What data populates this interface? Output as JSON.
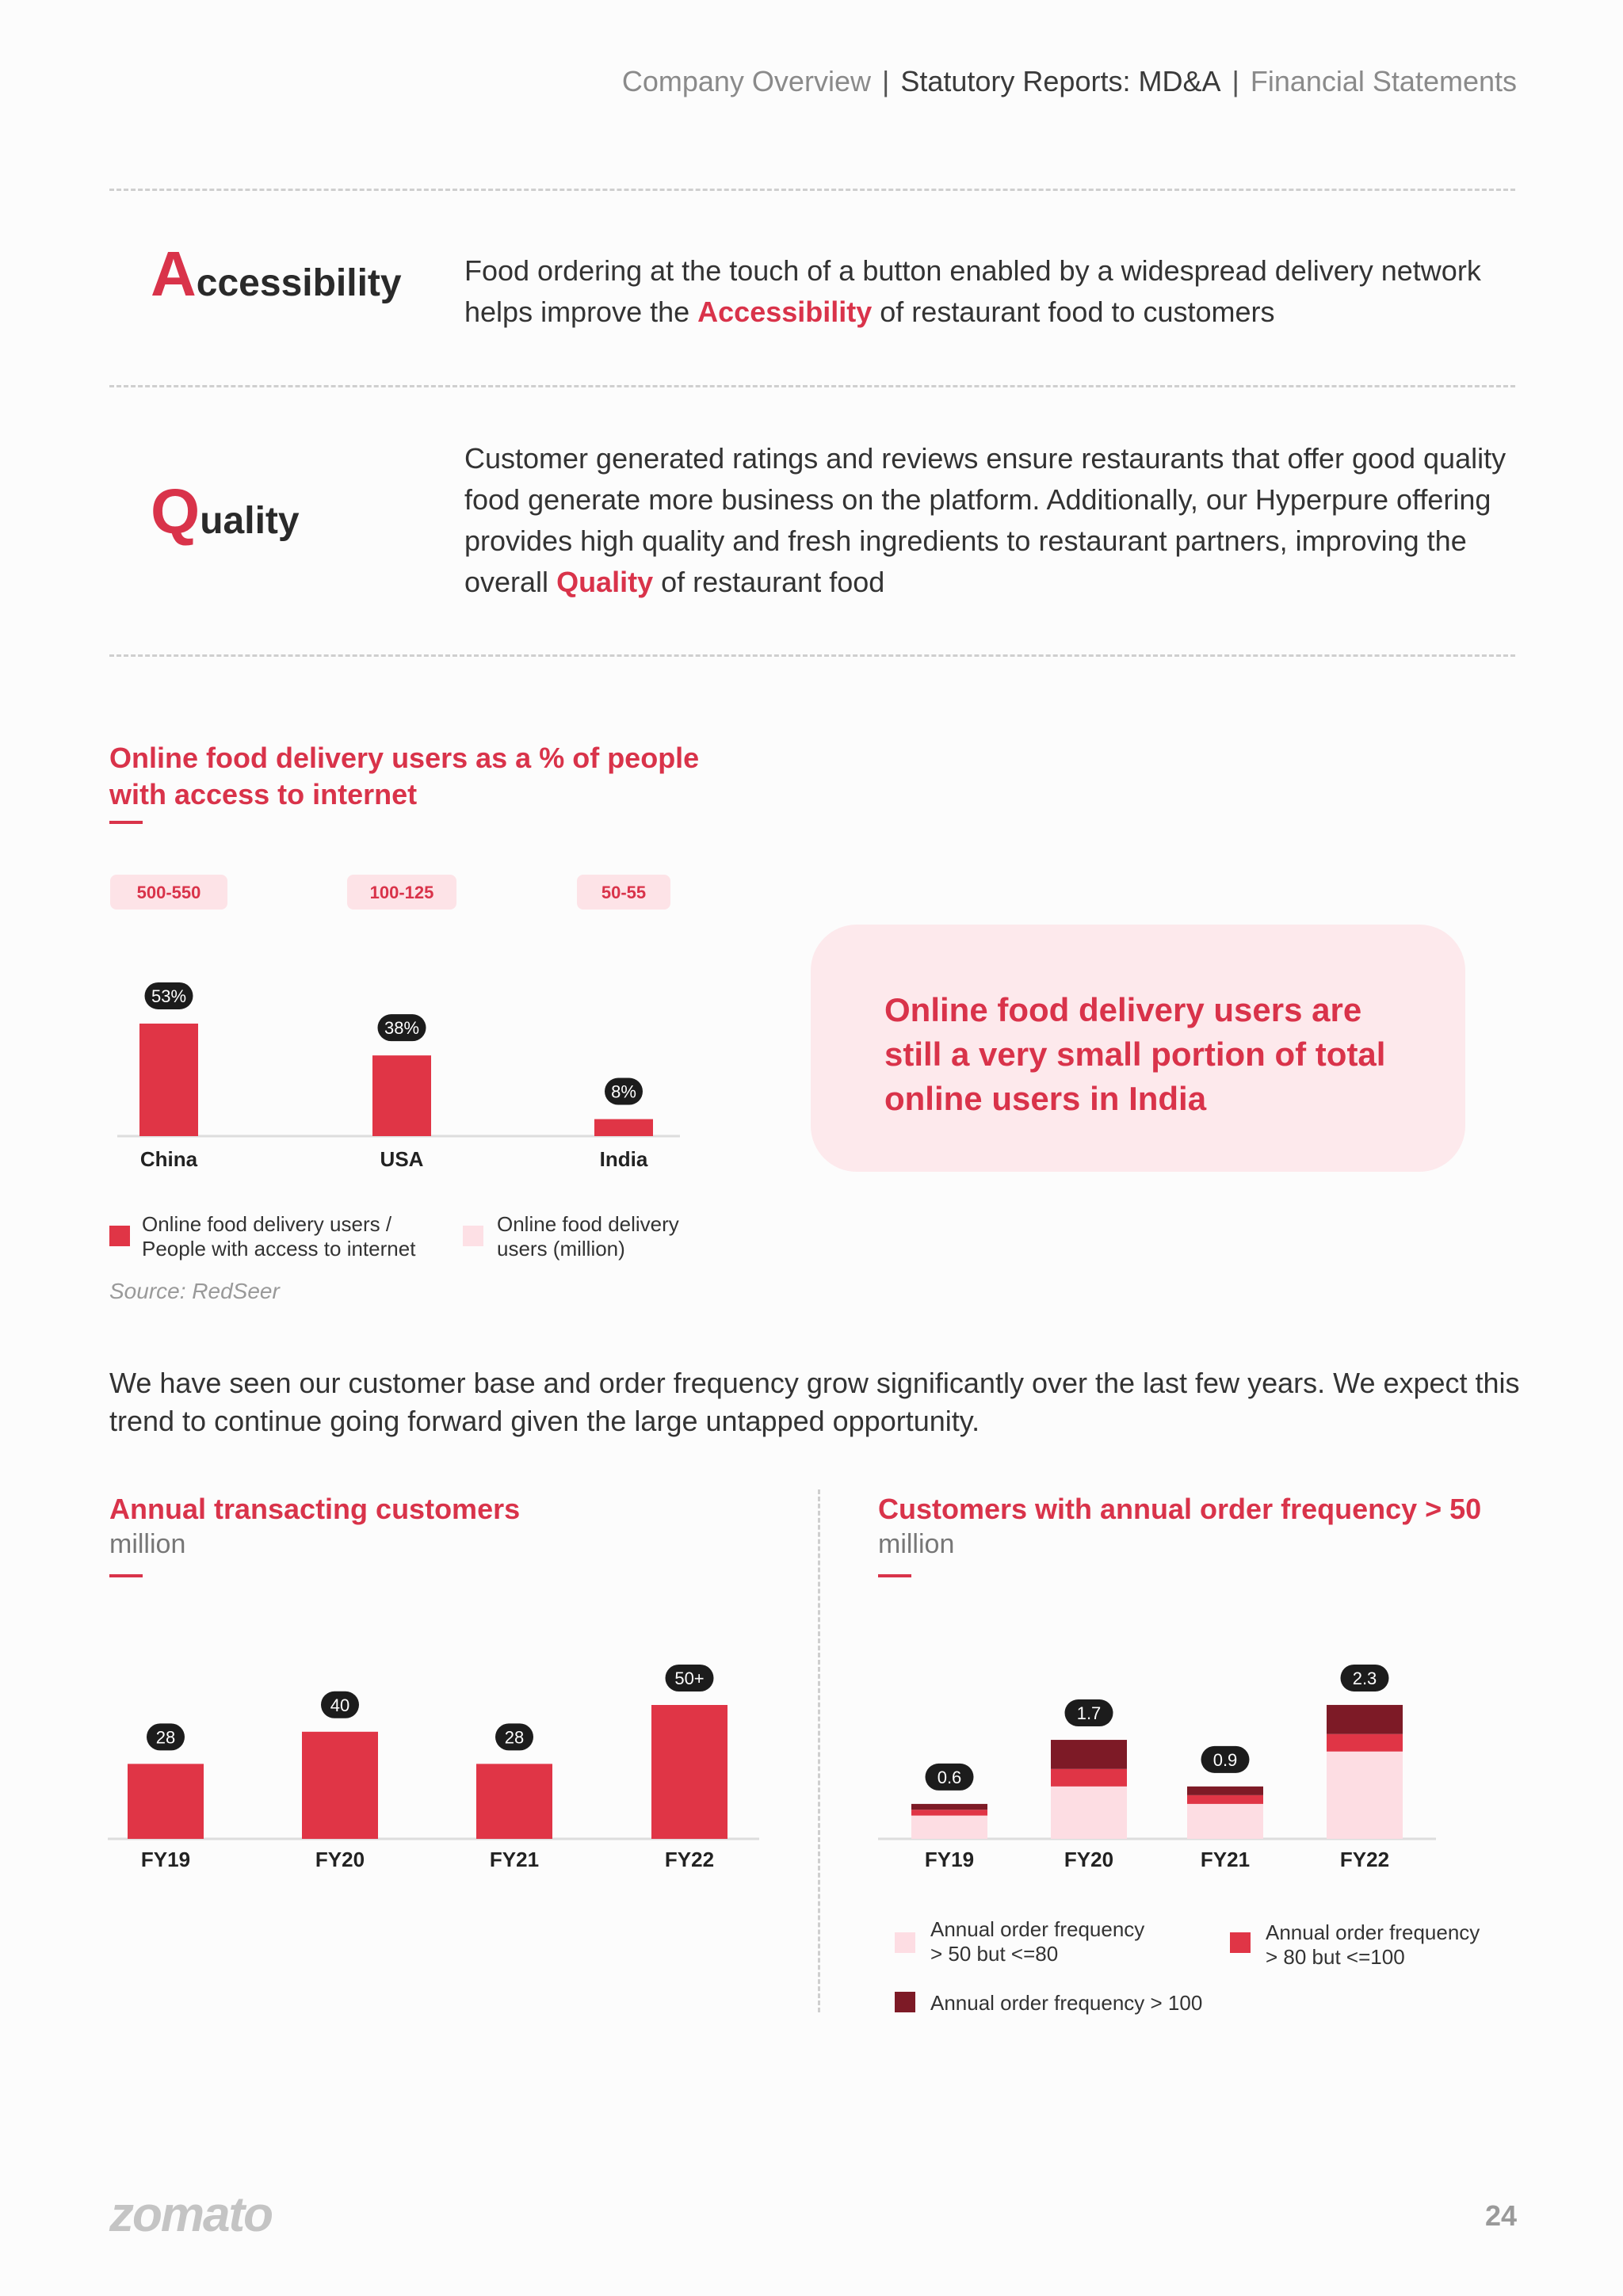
{
  "header": {
    "nav": [
      "Company Overview",
      "Statutory Reports: MD&A",
      "Financial Statements"
    ],
    "separator": "|"
  },
  "features": [
    {
      "title_initial": "A",
      "title_rest": "ccessibility",
      "text_before": "Food ordering at the touch of a button enabled by a widespread delivery network helps improve the ",
      "highlight": "Accessibility",
      "text_after": " of restaurant food to customers"
    },
    {
      "title_initial": "Q",
      "title_rest": "uality",
      "text_before": "Customer generated ratings and reviews ensure restaurants that offer good quality food generate more business on the platform. Additionally, our Hyperpure offering provides high quality and fresh ingredients to restaurant partners, improving the overall ",
      "highlight": "Quality",
      "text_after": " of restaurant food"
    }
  ],
  "chart1": {
    "title_line1": "Online food delivery users as a % of people",
    "title_line2": "with access to internet",
    "legend": [
      {
        "label_line1": "Online food delivery users /",
        "label_line2": "People with access to internet",
        "color": "#e03546"
      },
      {
        "label_line1": "Online food delivery",
        "label_line2": "users (million)",
        "color": "#fde0e5"
      }
    ],
    "source": "Source: RedSeer"
  },
  "callout": {
    "text_line1": "Online food delivery users are",
    "text_line2": "still a very small portion of total",
    "text_line3": "online users in India"
  },
  "paragraph": "We have seen our customer base and order frequency grow significantly over the last few years. We expect this trend to continue going forward given the large untapped opportunity.",
  "chart2": {
    "title": "Annual transacting customers",
    "subtitle": "million"
  },
  "chart3": {
    "title": "Customers with annual order frequency > 50",
    "subtitle": "million",
    "legend": [
      {
        "label_line1": "Annual order frequency",
        "label_line2": "> 50 but <=80",
        "color": "#fddde3"
      },
      {
        "label_line1": "Annual order frequency",
        "label_line2": "> 80 but <=100",
        "color": "#e03546"
      },
      {
        "label_line1": "Annual order frequency > 100",
        "label_line2": "",
        "color": "#7d1a26"
      }
    ]
  },
  "chart_data": [
    {
      "type": "bar",
      "title": "Online food delivery users as a % of people with access to internet",
      "categories": [
        "China",
        "USA",
        "India"
      ],
      "series": [
        {
          "name": "Online food delivery users / People with access to internet",
          "values": [
            53,
            38,
            8
          ],
          "labels": [
            "53%",
            "38%",
            "8%"
          ]
        }
      ],
      "category_annotations": [
        "500-550",
        "100-125",
        "50-55"
      ],
      "ylim": [
        0,
        60
      ]
    },
    {
      "type": "bar",
      "title": "Annual transacting customers",
      "ylabel": "million",
      "categories": [
        "FY19",
        "FY20",
        "FY21",
        "FY22"
      ],
      "values": [
        28,
        40,
        28,
        50
      ],
      "labels": [
        "28",
        "40",
        "28",
        "50+"
      ],
      "ylim": [
        0,
        60
      ]
    },
    {
      "type": "bar",
      "stacked": true,
      "title": "Customers with annual order frequency > 50",
      "ylabel": "million",
      "categories": [
        "FY19",
        "FY20",
        "FY21",
        "FY22"
      ],
      "totals": [
        "0.6",
        "1.7",
        "0.9",
        "2.3"
      ],
      "series": [
        {
          "name": "Annual order frequency > 50 but <=80",
          "values": [
            0.4,
            0.9,
            0.6,
            1.5
          ]
        },
        {
          "name": "Annual order frequency > 80 but <=100",
          "values": [
            0.1,
            0.3,
            0.15,
            0.3
          ]
        },
        {
          "name": "Annual order frequency > 100",
          "values": [
            0.1,
            0.5,
            0.15,
            0.5
          ]
        }
      ],
      "ylim": [
        0,
        3
      ]
    }
  ],
  "footer": {
    "logo": "zomato",
    "page_number": "24"
  }
}
